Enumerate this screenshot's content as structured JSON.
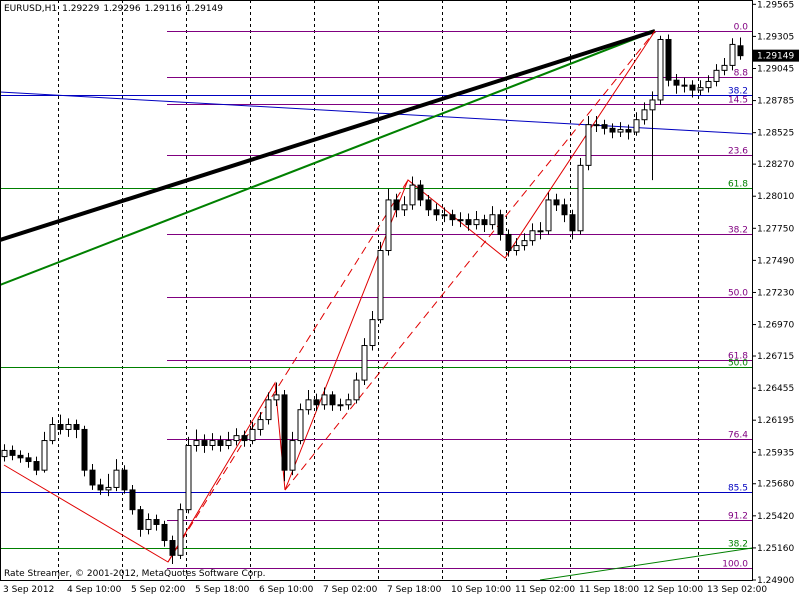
{
  "chart_data": {
    "type": "candlestick",
    "symbol": "EURUSD,H1",
    "footer": "Rate Streamer, © 2001-2012, MetaQuotes Software Corp.",
    "time_labels": [
      "3 Sep 2012",
      "4 Sep 10:00",
      "5 Sep 02:00",
      "5 Sep 18:00",
      "6 Sep 10:00",
      "7 Sep 02:00",
      "7 Sep 18:00",
      "10 Sep 10:00",
      "11 Sep 02:00",
      "11 Sep 18:00",
      "12 Sep 10:00",
      "13 Sep 02:00"
    ],
    "ylim": [
      1.249,
      1.296
    ],
    "yticks": [
      1.29565,
      {
        "value": 1.29305,
        "label": "1.29305"
      },
      1.29045,
      1.28785,
      1.28525,
      {
        "value": 1.2827,
        "label": "1.28270"
      },
      {
        "value": 1.2801,
        "label": "1.28010"
      },
      {
        "value": 1.2775,
        "label": "1.27750"
      },
      {
        "value": 1.2749,
        "label": "1.27490"
      },
      {
        "value": 1.2723,
        "label": "1.27230"
      },
      {
        "value": 1.2697,
        "label": "1.26970"
      },
      1.26715,
      1.26455,
      1.26195,
      1.25935,
      {
        "value": 1.2568,
        "label": "1.25680"
      },
      {
        "value": 1.2542,
        "label": "1.25420"
      },
      {
        "value": 1.2516,
        "label": "1.25160"
      },
      {
        "value": 1.249,
        "label": "1.24900"
      }
    ],
    "open": [
      1.259,
      1.2595,
      1.2591,
      1.2589,
      1.2586,
      1.2579,
      1.2603,
      1.2616,
      1.2612,
      1.2616,
      1.2612,
      1.2579,
      1.2567,
      1.2563,
      1.2565,
      1.2579,
      1.2563,
      1.2547,
      1.2531,
      1.2539,
      1.2535,
      1.2522,
      1.251,
      1.2547,
      1.2599,
      1.2603,
      1.2599,
      1.2603,
      1.2599,
      1.2603,
      1.2607,
      1.2603,
      1.2612,
      1.262,
      1.2636,
      1.264,
      1.2579,
      1.2603,
      1.2628,
      1.2636,
      1.2632,
      1.264,
      1.2632,
      1.2632,
      1.2636,
      1.2652,
      1.268,
      1.2701,
      1.2757,
      1.2798,
      1.279,
      1.2794,
      1.281,
      1.2798,
      1.279,
      1.2786,
      1.2786,
      1.2782,
      1.2782,
      1.2778,
      1.2782,
      1.2778,
      1.2786,
      1.277,
      1.2757,
      1.2761,
      1.2765,
      1.2773,
      1.2773,
      1.2798,
      1.2794,
      1.2786,
      1.2773,
      1.2826,
      1.2859,
      1.2859,
      1.2856,
      1.2853,
      1.2855,
      1.2853,
      1.2863,
      1.2871,
      1.2879,
      1.2928,
      1.2895,
      1.2891,
      1.2891,
      1.2887,
      1.2889,
      1.2894,
      1.2903,
      1.2907,
      1.29229
    ],
    "high": [
      1.26,
      1.2599,
      1.2595,
      1.2593,
      1.259,
      1.261,
      1.2622,
      1.2624,
      1.2621,
      1.262,
      1.2615,
      1.2584,
      1.2572,
      1.2576,
      1.2588,
      1.2583,
      1.2567,
      1.255,
      1.2544,
      1.2543,
      1.2538,
      1.2526,
      1.2552,
      1.2606,
      1.2612,
      1.2608,
      1.2609,
      1.2607,
      1.261,
      1.2613,
      1.2611,
      1.2618,
      1.2626,
      1.2642,
      1.265,
      1.2644,
      1.261,
      1.2633,
      1.2644,
      1.2641,
      1.2646,
      1.2643,
      1.2637,
      1.2641,
      1.2658,
      1.2686,
      1.2708,
      1.2764,
      1.2807,
      1.2803,
      1.2801,
      1.2817,
      1.2814,
      1.2802,
      1.2795,
      1.2792,
      1.279,
      1.2788,
      1.2787,
      1.2789,
      1.2786,
      1.2793,
      1.279,
      1.2774,
      1.2767,
      1.2771,
      1.2779,
      1.278,
      1.2804,
      1.2803,
      1.2799,
      1.279,
      1.2832,
      1.2866,
      1.2866,
      1.2863,
      1.286,
      1.2861,
      1.2859,
      1.2869,
      1.2877,
      1.2886,
      1.2931,
      1.2932,
      1.29,
      1.2897,
      1.2895,
      1.2895,
      1.2899,
      1.2908,
      1.2913,
      1.2929,
      1.29296
    ],
    "low": [
      1.2586,
      1.2587,
      1.2585,
      1.2581,
      1.2575,
      1.2577,
      1.26,
      1.2608,
      1.2606,
      1.2605,
      1.2574,
      1.2563,
      1.2559,
      1.2558,
      1.2562,
      1.256,
      1.2543,
      1.2525,
      1.2527,
      1.253,
      1.2517,
      1.2503,
      1.2507,
      1.2544,
      1.2594,
      1.2593,
      1.2595,
      1.2594,
      1.2596,
      1.2599,
      1.2598,
      1.26,
      1.2607,
      1.2616,
      1.2631,
      1.257,
      1.2575,
      1.26,
      1.2624,
      1.2627,
      1.2628,
      1.2627,
      1.2627,
      1.2628,
      1.2633,
      1.2648,
      1.2676,
      1.2698,
      1.2753,
      1.2784,
      1.2785,
      1.279,
      1.2793,
      1.2785,
      1.2781,
      1.278,
      1.2777,
      1.2776,
      1.2773,
      1.2774,
      1.2772,
      1.2774,
      1.2765,
      1.2752,
      1.2753,
      1.2757,
      1.2761,
      1.2766,
      1.277,
      1.2789,
      1.278,
      1.2766,
      1.277,
      1.2822,
      1.2853,
      1.2851,
      1.2848,
      1.2849,
      1.2847,
      1.285,
      1.2859,
      1.2814,
      1.2875,
      1.289,
      1.2884,
      1.2885,
      1.2881,
      1.2883,
      1.2885,
      1.289,
      1.2899,
      1.2903,
      1.29116
    ],
    "close": [
      1.2595,
      1.2591,
      1.2589,
      1.2586,
      1.2579,
      1.2603,
      1.2616,
      1.2612,
      1.2616,
      1.2612,
      1.2579,
      1.2567,
      1.2563,
      1.2565,
      1.2579,
      1.2563,
      1.2547,
      1.2531,
      1.2539,
      1.2535,
      1.2522,
      1.251,
      1.2547,
      1.2599,
      1.2603,
      1.2599,
      1.2603,
      1.2599,
      1.2603,
      1.2607,
      1.2603,
      1.2612,
      1.262,
      1.2636,
      1.264,
      1.2579,
      1.2603,
      1.2628,
      1.2636,
      1.2632,
      1.264,
      1.2632,
      1.2632,
      1.2636,
      1.2652,
      1.268,
      1.2701,
      1.2757,
      1.2798,
      1.279,
      1.2794,
      1.281,
      1.2798,
      1.279,
      1.2786,
      1.2786,
      1.2782,
      1.2782,
      1.2778,
      1.2782,
      1.2778,
      1.2786,
      1.277,
      1.2757,
      1.2761,
      1.2765,
      1.2773,
      1.2773,
      1.2798,
      1.2794,
      1.2786,
      1.2773,
      1.2826,
      1.2859,
      1.2859,
      1.2856,
      1.2853,
      1.2855,
      1.2853,
      1.2863,
      1.2871,
      1.2879,
      1.2928,
      1.2895,
      1.2891,
      1.2891,
      1.2887,
      1.2889,
      1.2894,
      1.2903,
      1.2907,
      1.2924,
      1.29149
    ],
    "levels": [
      {
        "label": "0.0",
        "price": 1.2935,
        "color": "#800080",
        "full": false
      },
      {
        "label": "8.8",
        "price": 1.2898,
        "color": "#800080",
        "full": false
      },
      {
        "label": "38.2",
        "price": 1.2883,
        "color": "#0000c0",
        "full": true
      },
      {
        "label": "14.5",
        "price": 1.2876,
        "color": "#800080",
        "full": false
      },
      {
        "label": "23.6",
        "price": 1.2834,
        "color": "#800080",
        "full": false
      },
      {
        "label": "61.8",
        "price": 1.2808,
        "color": "#008000",
        "full": true
      },
      {
        "label": "38.2",
        "price": 1.277,
        "color": "#800080",
        "full": false
      },
      {
        "label": "50.0",
        "price": 1.2719,
        "color": "#800080",
        "full": false
      },
      {
        "label": "61.8",
        "price": 1.2668,
        "color": "#800080",
        "full": false
      },
      {
        "label": "50.0",
        "price": 1.2663,
        "color": "#008000",
        "full": true
      },
      {
        "label": "76.4",
        "price": 1.2604,
        "color": "#800080",
        "full": false
      },
      {
        "label": "85.5",
        "price": 1.2561,
        "color": "#0000c0",
        "full": true
      },
      {
        "label": "91.2",
        "price": 1.2539,
        "color": "#800080",
        "full": false
      },
      {
        "label": "38.2",
        "price": 1.2516,
        "color": "#008000",
        "full": true
      },
      {
        "label": "100.0",
        "price": 1.25,
        "color": "#800080",
        "full": false
      }
    ]
  }
}
